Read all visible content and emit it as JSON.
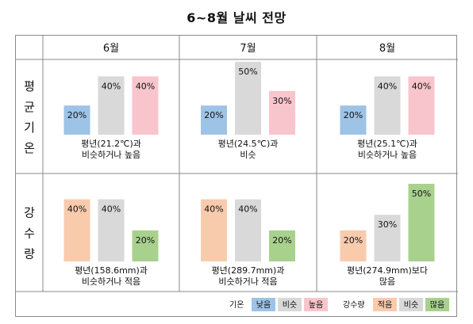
{
  "title": "6~8월 날씨 전망",
  "months": [
    "6월",
    "7월",
    "8월"
  ],
  "rows": [
    {
      "label_chars": [
        "평",
        "균",
        "기",
        "온"
      ],
      "kind": "temperature",
      "cells": [
        {
          "values": [
            20,
            40,
            40
          ],
          "labels": [
            "20%",
            "40%",
            "40%"
          ],
          "caption": [
            "평년(21.2℃)과",
            "비슷하거나 높음"
          ]
        },
        {
          "values": [
            20,
            50,
            30
          ],
          "labels": [
            "20%",
            "50%",
            "30%"
          ],
          "caption": [
            "평년(24.5℃)과",
            "비슷"
          ]
        },
        {
          "values": [
            20,
            40,
            40
          ],
          "labels": [
            "20%",
            "40%",
            "40%"
          ],
          "caption": [
            "평년(25.1℃)과",
            "비슷하거나 높음"
          ]
        }
      ]
    },
    {
      "label_chars": [
        "강",
        "수",
        "량"
      ],
      "kind": "precipitation",
      "cells": [
        {
          "values": [
            40,
            40,
            20
          ],
          "labels": [
            "40%",
            "40%",
            "20%"
          ],
          "caption": [
            "평년(158.6mm)과",
            "비슷하거나 적음"
          ]
        },
        {
          "values": [
            40,
            40,
            20
          ],
          "labels": [
            "40%",
            "40%",
            "20%"
          ],
          "caption": [
            "평년(289.7mm)과",
            "비슷하거나 적음"
          ]
        },
        {
          "values": [
            20,
            30,
            50
          ],
          "labels": [
            "20%",
            "30%",
            "50%"
          ],
          "caption": [
            "평년(274.9mm)보다",
            "많음"
          ]
        }
      ]
    }
  ],
  "legend": {
    "temperature": {
      "label": "기온",
      "items": [
        "낮음",
        "비슷",
        "높음"
      ]
    },
    "precipitation": {
      "label": "강수량",
      "items": [
        "적음",
        "비슷",
        "많음"
      ]
    }
  },
  "colors": {
    "temperature": [
      "#9dc3e6",
      "#d9d9d9",
      "#f8c5cc"
    ],
    "precipitation": [
      "#f8cbad",
      "#d9d9d9",
      "#a9d18e"
    ]
  },
  "chart_data": {
    "type": "bar",
    "title": "6~8월 날씨 전망",
    "categories": [
      "6월",
      "7월",
      "8월"
    ],
    "groups": [
      {
        "name": "평균기온",
        "series": [
          {
            "name": "낮음",
            "values": [
              20,
              20,
              20
            ]
          },
          {
            "name": "비슷",
            "values": [
              40,
              50,
              40
            ]
          },
          {
            "name": "높음",
            "values": [
              40,
              30,
              40
            ]
          }
        ]
      },
      {
        "name": "강수량",
        "series": [
          {
            "name": "적음",
            "values": [
              40,
              40,
              20
            ]
          },
          {
            "name": "비슷",
            "values": [
              40,
              40,
              30
            ]
          },
          {
            "name": "많음",
            "values": [
              20,
              20,
              50
            ]
          }
        ]
      }
    ],
    "legend": "bottom-right",
    "grid": false
  }
}
